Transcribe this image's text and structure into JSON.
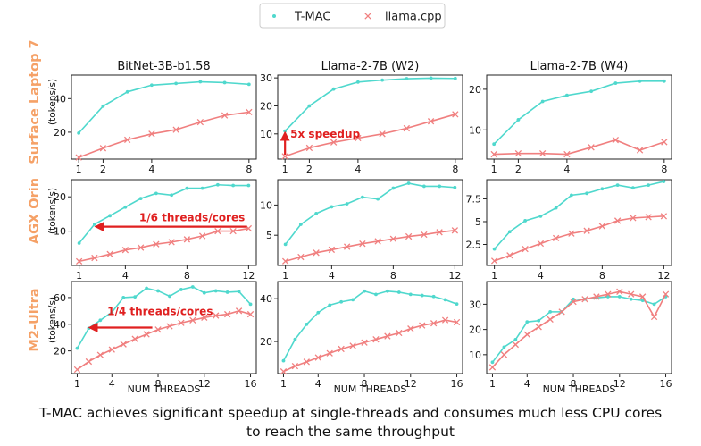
{
  "legend": {
    "tmac": "T-MAC",
    "llama": "llama.cpp"
  },
  "colors": {
    "tmac": "#4fd8cd",
    "llama": "#f07f7f",
    "row_label": "#f5a167",
    "annotation": "#e02020"
  },
  "row_labels": [
    "Surface Laptop 7",
    "AGX Orin",
    "M2-Ultra"
  ],
  "y_unit_label": "(tokens/s)",
  "x_axis_label": "NUM THREADS",
  "caption_line1": "T-MAC achieves significant speedup at single-threads and consumes much less CPU cores",
  "caption_line2": "to reach the same throughput",
  "chart_data": [
    {
      "type": "line",
      "row": 0,
      "col": 0,
      "title": "BitNet-3B-b1.58",
      "xlim": [
        0.7,
        8.3
      ],
      "ylim": [
        4,
        54
      ],
      "xticks": [
        1,
        2,
        4,
        8
      ],
      "yticks": [
        20,
        40
      ],
      "series": [
        {
          "name": "T-MAC",
          "x": [
            1,
            2,
            3,
            4,
            5,
            6,
            7,
            8
          ],
          "values": [
            19.5,
            35.5,
            44,
            48,
            49,
            50,
            49.5,
            48.5
          ]
        },
        {
          "name": "llama.cpp",
          "x": [
            1,
            2,
            3,
            4,
            5,
            6,
            7,
            8
          ],
          "values": [
            5,
            10.5,
            15.5,
            19,
            21.5,
            26,
            30,
            32
          ]
        }
      ]
    },
    {
      "type": "line",
      "row": 0,
      "col": 1,
      "title": "Llama-2-7B (W2)",
      "xlim": [
        0.7,
        8.3
      ],
      "ylim": [
        1,
        31
      ],
      "xticks": [
        1,
        2,
        4,
        8
      ],
      "yticks": [
        10,
        20,
        30
      ],
      "series": [
        {
          "name": "T-MAC",
          "x": [
            1,
            2,
            3,
            4,
            5,
            6,
            7,
            8
          ],
          "values": [
            11,
            20,
            26,
            28.5,
            29.2,
            29.7,
            29.9,
            29.8
          ]
        },
        {
          "name": "llama.cpp",
          "x": [
            1,
            2,
            3,
            4,
            5,
            6,
            7,
            8
          ],
          "values": [
            2,
            5,
            7,
            8.5,
            10,
            12,
            14.5,
            17
          ]
        }
      ]
    },
    {
      "type": "line",
      "row": 0,
      "col": 2,
      "title": "Llama-2-7B (W4)",
      "xlim": [
        0.7,
        8.3
      ],
      "ylim": [
        2.8,
        23.5
      ],
      "xticks": [
        1,
        2,
        4,
        8
      ],
      "yticks": [
        10,
        20
      ],
      "series": [
        {
          "name": "T-MAC",
          "x": [
            1,
            2,
            3,
            4,
            5,
            6,
            7,
            8
          ],
          "values": [
            6.5,
            12.5,
            17,
            18.5,
            19.5,
            21.5,
            22,
            22
          ]
        },
        {
          "name": "llama.cpp",
          "x": [
            1,
            2,
            3,
            4,
            5,
            6,
            7,
            8
          ],
          "values": [
            4,
            4.2,
            4.2,
            4,
            5.7,
            7.5,
            5,
            7
          ]
        }
      ]
    },
    {
      "type": "line",
      "row": 1,
      "col": 0,
      "title": "",
      "xlim": [
        0.5,
        12.5
      ],
      "ylim": [
        0,
        25
      ],
      "xticks": [
        1,
        4,
        8,
        12
      ],
      "yticks": [
        10,
        20
      ],
      "series": [
        {
          "name": "T-MAC",
          "x": [
            1,
            2,
            3,
            4,
            5,
            6,
            7,
            8,
            9,
            10,
            11,
            12
          ],
          "values": [
            6.5,
            12,
            14.5,
            17,
            19.5,
            21,
            20.5,
            22.5,
            22.5,
            23.5,
            23.3,
            23.3
          ]
        },
        {
          "name": "llama.cpp",
          "x": [
            1,
            2,
            3,
            4,
            5,
            6,
            7,
            8,
            9,
            10,
            11,
            12
          ],
          "values": [
            1.2,
            2.2,
            3.3,
            4.5,
            5.2,
            6.2,
            6.8,
            7.6,
            8.6,
            10,
            10,
            10.8
          ]
        }
      ]
    },
    {
      "type": "line",
      "row": 1,
      "col": 1,
      "title": "",
      "xlim": [
        0.5,
        12.5
      ],
      "ylim": [
        0,
        14.2
      ],
      "xticks": [
        1,
        4,
        8,
        12
      ],
      "yticks": [
        5,
        10
      ],
      "series": [
        {
          "name": "T-MAC",
          "x": [
            1,
            2,
            3,
            4,
            5,
            6,
            7,
            8,
            9,
            10,
            11,
            12
          ],
          "values": [
            3.5,
            6.8,
            8.6,
            9.7,
            10.2,
            11.3,
            11,
            12.8,
            13.6,
            13.1,
            13.1,
            12.9
          ]
        },
        {
          "name": "llama.cpp",
          "x": [
            1,
            2,
            3,
            4,
            5,
            6,
            7,
            8,
            9,
            10,
            11,
            12
          ],
          "values": [
            0.7,
            1.4,
            2.1,
            2.6,
            3.1,
            3.6,
            4,
            4.4,
            4.8,
            5.1,
            5.5,
            5.8
          ]
        }
      ]
    },
    {
      "type": "line",
      "row": 1,
      "col": 2,
      "title": "",
      "xlim": [
        0.5,
        12.5
      ],
      "ylim": [
        0.2,
        9.6
      ],
      "xticks": [
        1,
        4,
        8,
        12
      ],
      "yticks": [
        2.5,
        5.0,
        7.5
      ],
      "series": [
        {
          "name": "T-MAC",
          "x": [
            1,
            2,
            3,
            4,
            5,
            6,
            7,
            8,
            9,
            10,
            11,
            12
          ],
          "values": [
            2,
            3.9,
            5.1,
            5.6,
            6.5,
            7.9,
            8.1,
            8.6,
            9,
            8.7,
            9,
            9.4
          ]
        },
        {
          "name": "llama.cpp",
          "x": [
            1,
            2,
            3,
            4,
            5,
            6,
            7,
            8,
            9,
            10,
            11,
            12
          ],
          "values": [
            0.7,
            1.3,
            2,
            2.6,
            3.2,
            3.7,
            4,
            4.5,
            5.1,
            5.4,
            5.5,
            5.6
          ]
        }
      ]
    },
    {
      "type": "line",
      "row": 2,
      "col": 0,
      "title": "",
      "xlim": [
        0.5,
        16.5
      ],
      "ylim": [
        3,
        72
      ],
      "xticks": [
        1,
        4,
        8,
        12,
        16
      ],
      "yticks": [
        20,
        40,
        60
      ],
      "series": [
        {
          "name": "T-MAC",
          "x": [
            1,
            2,
            3,
            4,
            5,
            6,
            7,
            8,
            9,
            10,
            11,
            12,
            13,
            14,
            15,
            16
          ],
          "values": [
            22,
            37,
            43,
            49,
            60,
            60.5,
            67,
            65,
            61,
            66,
            68,
            63.5,
            65,
            64,
            64.5,
            55
          ]
        },
        {
          "name": "llama.cpp",
          "x": [
            1,
            2,
            3,
            4,
            5,
            6,
            7,
            8,
            9,
            10,
            11,
            12,
            13,
            14,
            15,
            16
          ],
          "values": [
            6,
            12,
            17,
            21,
            25,
            29,
            32.5,
            36,
            38.5,
            41,
            43,
            45,
            46.5,
            47.5,
            50,
            47.5
          ]
        }
      ]
    },
    {
      "type": "line",
      "row": 2,
      "col": 1,
      "title": "",
      "xlim": [
        0.5,
        16.5
      ],
      "ylim": [
        5,
        48
      ],
      "xticks": [
        1,
        4,
        8,
        12,
        16
      ],
      "yticks": [
        20,
        40
      ],
      "series": [
        {
          "name": "T-MAC",
          "x": [
            1,
            2,
            3,
            4,
            5,
            6,
            7,
            8,
            9,
            10,
            11,
            12,
            13,
            14,
            15,
            16
          ],
          "values": [
            11,
            21,
            28,
            33.5,
            37,
            38.5,
            39.5,
            43.5,
            42,
            43.5,
            43,
            42,
            41.5,
            41,
            39.5,
            37.5
          ]
        },
        {
          "name": "llama.cpp",
          "x": [
            1,
            2,
            3,
            4,
            5,
            6,
            7,
            8,
            9,
            10,
            11,
            12,
            13,
            14,
            15,
            16
          ],
          "values": [
            6,
            8.5,
            10.5,
            12.5,
            14.5,
            16.5,
            18,
            19.5,
            21,
            22.5,
            24,
            26,
            27.5,
            28.5,
            30,
            29
          ]
        }
      ]
    },
    {
      "type": "line",
      "row": 2,
      "col": 2,
      "title": "",
      "xlim": [
        0.5,
        16.5
      ],
      "ylim": [
        2.5,
        39
      ],
      "xticks": [
        1,
        4,
        8,
        12,
        16
      ],
      "yticks": [
        10,
        20,
        30
      ],
      "series": [
        {
          "name": "T-MAC",
          "x": [
            1,
            2,
            3,
            4,
            5,
            6,
            7,
            8,
            9,
            10,
            11,
            12,
            13,
            14,
            15,
            16
          ],
          "values": [
            7,
            13,
            16,
            23,
            23.5,
            27,
            27,
            32,
            32,
            32.5,
            33,
            33,
            32,
            31.5,
            30,
            33
          ]
        },
        {
          "name": "llama.cpp",
          "x": [
            1,
            2,
            3,
            4,
            5,
            6,
            7,
            8,
            9,
            10,
            11,
            12,
            13,
            14,
            15,
            16
          ],
          "values": [
            5,
            10,
            14,
            18,
            21,
            24,
            27,
            31,
            32,
            33,
            34,
            35,
            34,
            33,
            25,
            34
          ]
        }
      ]
    }
  ],
  "annotations": [
    {
      "panel": 1,
      "text": "5x speedup"
    },
    {
      "panel": 3,
      "text": "1/6 threads/cores"
    },
    {
      "panel": 6,
      "text": "1/4 threads/cores"
    }
  ]
}
